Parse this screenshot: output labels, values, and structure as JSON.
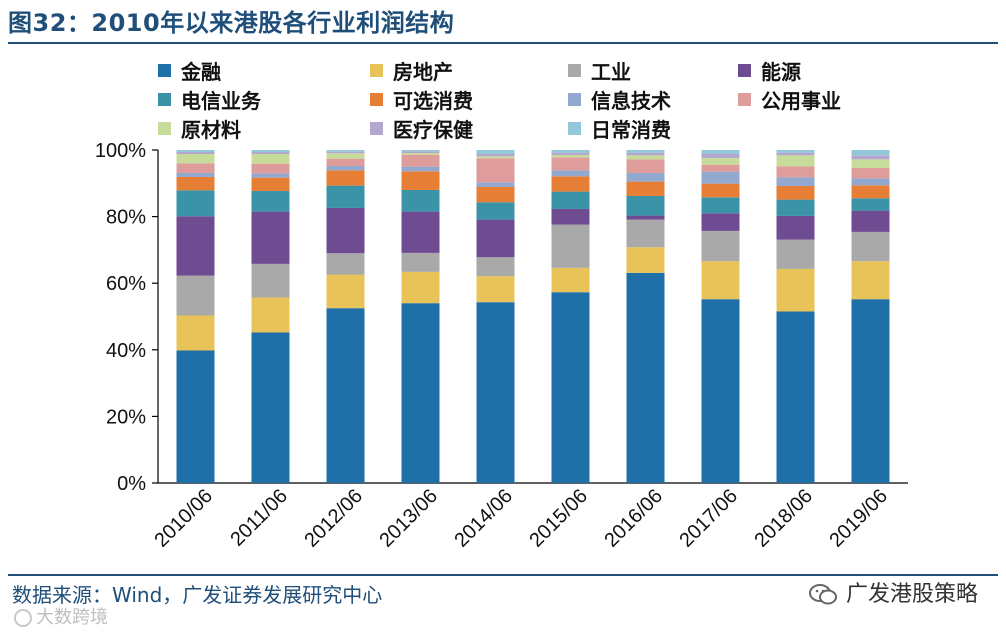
{
  "title": "图32：2010年以来港股各行业利润结构",
  "source": "数据来源：Wind，广发证券发展研究中心",
  "brand": "广发港股策略",
  "watermark": "大数跨境",
  "chart_data": {
    "type": "bar",
    "stacked": true,
    "percent": true,
    "categories": [
      "2010/06",
      "2011/06",
      "2012/06",
      "2013/06",
      "2014/06",
      "2015/06",
      "2016/06",
      "2017/06",
      "2018/06",
      "2019/06"
    ],
    "yticks": [
      "0%",
      "20%",
      "40%",
      "60%",
      "80%",
      "100%"
    ],
    "ylim": [
      0,
      100
    ],
    "series": [
      {
        "name": "金融",
        "color": "#1f6fa8",
        "values": [
          39.8,
          45.2,
          52.5,
          54.0,
          54.3,
          57.3,
          63.1,
          55.2,
          51.5,
          55.2
        ]
      },
      {
        "name": "房地产",
        "color": "#e8c35a",
        "values": [
          10.5,
          10.5,
          10.1,
          9.4,
          7.8,
          7.3,
          7.7,
          11.4,
          12.8,
          11.4
        ]
      },
      {
        "name": "工业",
        "color": "#a9a9a9",
        "values": [
          12.0,
          10.1,
          6.4,
          5.7,
          5.7,
          13.0,
          8.3,
          9.1,
          8.8,
          8.8
        ]
      },
      {
        "name": "能源",
        "color": "#6f4b92",
        "values": [
          17.8,
          15.7,
          13.6,
          12.4,
          11.3,
          4.7,
          1.2,
          5.3,
          7.1,
          6.4
        ]
      },
      {
        "name": "电信业务",
        "color": "#3b93a8",
        "values": [
          7.8,
          6.2,
          6.7,
          6.5,
          5.2,
          5.2,
          5.9,
          4.8,
          4.9,
          3.7
        ]
      },
      {
        "name": "可选消费",
        "color": "#e67f35",
        "values": [
          4.0,
          4.0,
          4.6,
          5.6,
          4.6,
          4.6,
          4.3,
          4.1,
          4.1,
          3.9
        ]
      },
      {
        "name": "信息技术",
        "color": "#93a8cf",
        "values": [
          1.2,
          1.3,
          1.3,
          1.4,
          1.4,
          1.8,
          2.6,
          3.6,
          2.6,
          2.1
        ]
      },
      {
        "name": "公用事业",
        "color": "#de9c9b",
        "values": [
          2.9,
          2.9,
          2.2,
          3.6,
          7.2,
          3.9,
          4.1,
          2.1,
          3.3,
          3.1
        ]
      },
      {
        "name": "原材料",
        "color": "#c7dc9a",
        "values": [
          2.8,
          2.9,
          1.6,
          0.5,
          0.6,
          0.7,
          1.2,
          2.0,
          3.3,
          2.6
        ]
      },
      {
        "name": "医疗保健",
        "color": "#b3a7cf",
        "values": [
          0.6,
          0.6,
          0.5,
          0.5,
          0.7,
          0.7,
          0.8,
          1.2,
          0.8,
          1.2
        ]
      },
      {
        "name": "日常消费",
        "color": "#93c8db",
        "values": [
          0.6,
          0.6,
          0.5,
          0.4,
          1.2,
          0.8,
          0.8,
          1.2,
          0.8,
          1.6
        ]
      }
    ]
  }
}
